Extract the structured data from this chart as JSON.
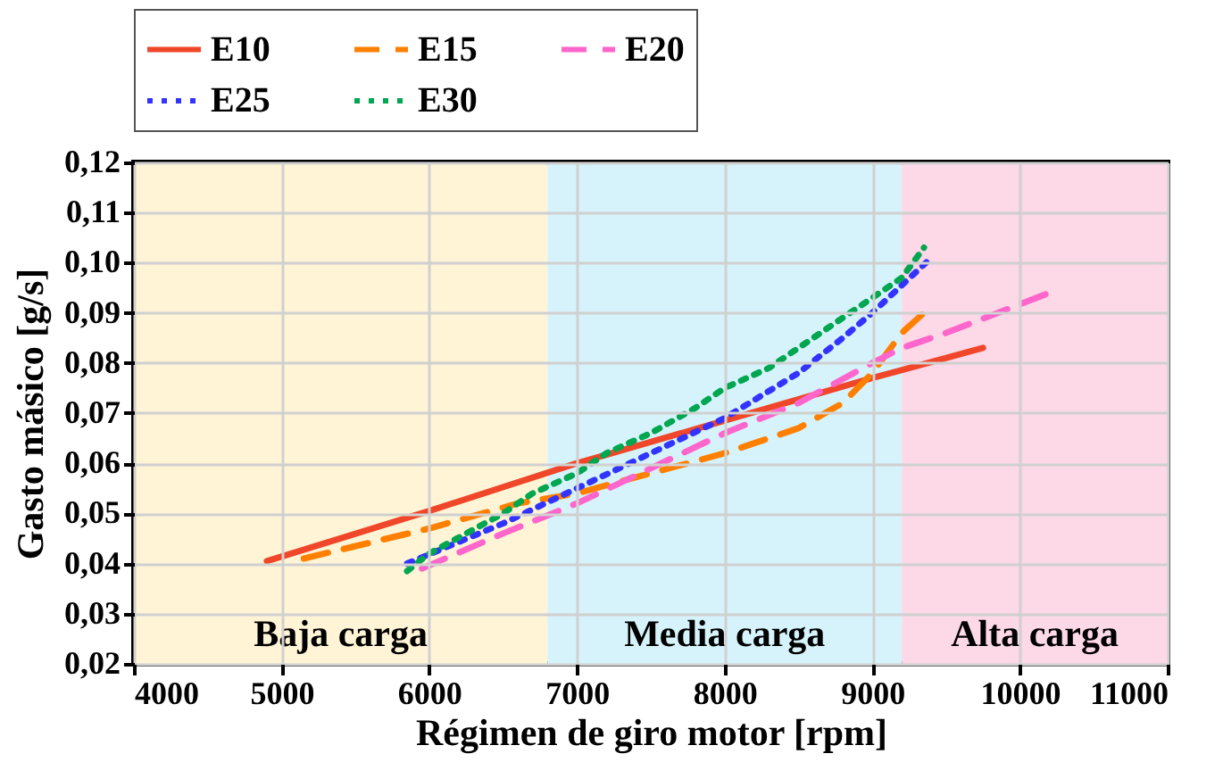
{
  "chart_data": {
    "type": "line",
    "xlabel": "Régimen de giro motor [rpm]",
    "ylabel": "Gasto másico [g/s]",
    "xlim": [
      4000,
      11000
    ],
    "xticks": [
      4000,
      5000,
      6000,
      7000,
      8000,
      9000,
      10000,
      11000
    ],
    "ylim": [
      0.02,
      0.12
    ],
    "yticks": [
      {
        "value": 0.02,
        "label": "0,02"
      },
      {
        "value": 0.03,
        "label": "0,03"
      },
      {
        "value": 0.04,
        "label": "0,04"
      },
      {
        "value": 0.05,
        "label": "0,05"
      },
      {
        "value": 0.06,
        "label": "0,06"
      },
      {
        "value": 0.07,
        "label": "0,07"
      },
      {
        "value": 0.08,
        "label": "0,08"
      },
      {
        "value": 0.09,
        "label": "0,09"
      },
      {
        "value": 0.1,
        "label": "0,10"
      },
      {
        "value": 0.11,
        "label": "0,11"
      },
      {
        "value": 0.12,
        "label": "0,12"
      }
    ],
    "grid": true,
    "legend": "top",
    "bands": [
      {
        "axis": "x",
        "from": 4000,
        "to": 6800,
        "label": "Baja carga",
        "color": "#fff4d6"
      },
      {
        "axis": "x",
        "from": 6800,
        "to": 9200,
        "label": "Media carga",
        "color": "#d6f3fb"
      },
      {
        "axis": "x",
        "from": 9200,
        "to": 11000,
        "label": "Alta carga",
        "color": "#fdd8e6"
      }
    ],
    "series": [
      {
        "name": "E10",
        "color": "#f0462a",
        "line_style": "solid",
        "x": [
          4900,
          6000,
          7000,
          8000,
          9000,
          9750
        ],
        "values": [
          0.0405,
          0.0505,
          0.06,
          0.0685,
          0.077,
          0.083
        ]
      },
      {
        "name": "E15",
        "color": "#ff8000",
        "line_style": "dashed",
        "x": [
          5150,
          6000,
          6600,
          7000,
          7500,
          8000,
          8500,
          8800,
          9000,
          9200,
          9350
        ],
        "values": [
          0.041,
          0.047,
          0.052,
          0.054,
          0.058,
          0.062,
          0.067,
          0.072,
          0.078,
          0.086,
          0.09
        ]
      },
      {
        "name": "E20",
        "color": "#ff66cc",
        "line_style": "dashed",
        "x": [
          5950,
          6500,
          7000,
          7500,
          8000,
          8500,
          9000,
          9200,
          9500,
          10200
        ],
        "values": [
          0.039,
          0.046,
          0.052,
          0.059,
          0.066,
          0.072,
          0.08,
          0.083,
          0.086,
          0.094
        ]
      },
      {
        "name": "E25",
        "color": "#3333ff",
        "line_style": "dotted",
        "x": [
          5850,
          6500,
          7000,
          7500,
          8000,
          8500,
          8800,
          9000,
          9400
        ],
        "values": [
          0.04,
          0.048,
          0.055,
          0.062,
          0.069,
          0.078,
          0.085,
          0.09,
          0.101
        ]
      },
      {
        "name": "E30",
        "color": "#00a650",
        "line_style": "dotted",
        "x": [
          5850,
          6000,
          6250,
          6500,
          6700,
          7000,
          7200,
          7500,
          7800,
          8000,
          8300,
          8500,
          8700,
          9000,
          9200,
          9350
        ],
        "values": [
          0.0385,
          0.042,
          0.046,
          0.05,
          0.054,
          0.058,
          0.062,
          0.066,
          0.071,
          0.075,
          0.079,
          0.083,
          0.087,
          0.093,
          0.097,
          0.103
        ]
      }
    ]
  }
}
